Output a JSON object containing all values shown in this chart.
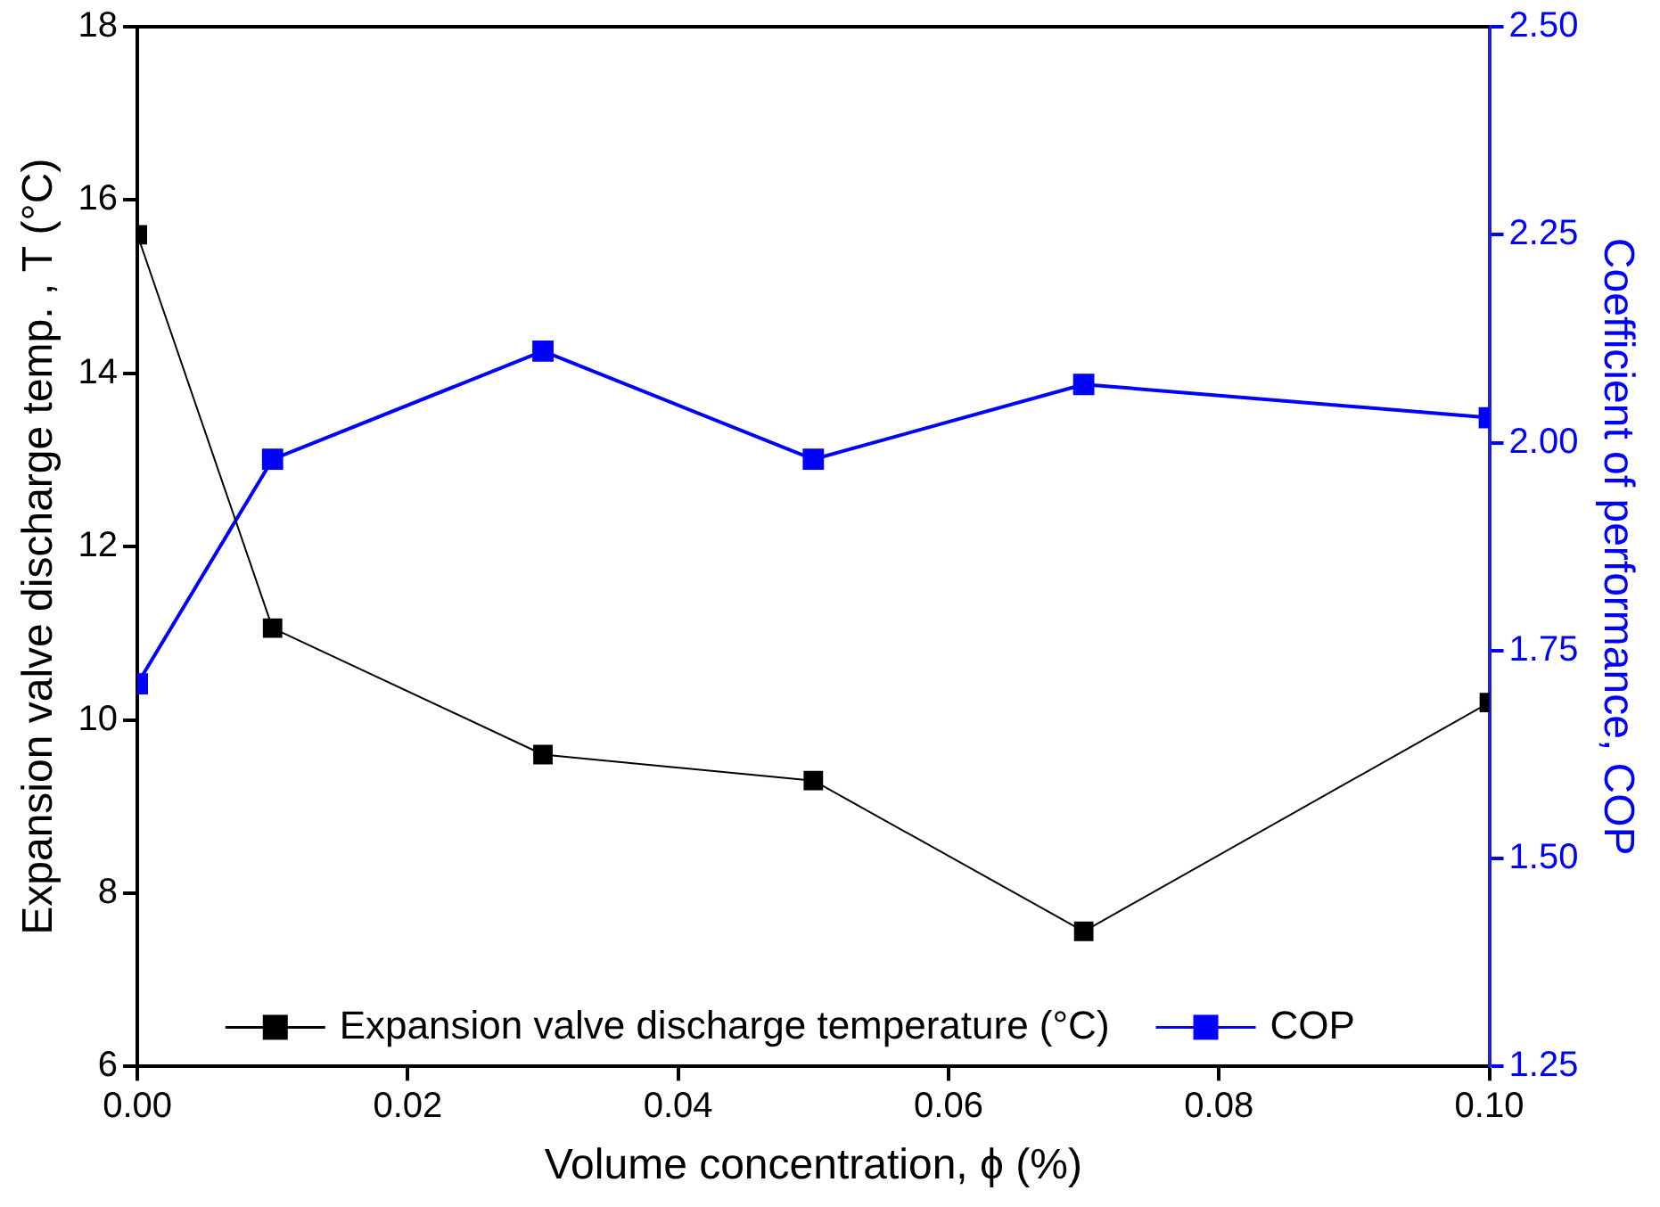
{
  "chart_data": {
    "type": "line",
    "xlabel": "Volume concentration, ϕ (%)",
    "ylabel": "Expansion valve discharge temp. , T (°C)",
    "y2label": "Coefficient of performance, COP",
    "x": [
      0,
      0.01,
      0.03,
      0.05,
      0.07,
      0.1
    ],
    "xlim": [
      0,
      0.1
    ],
    "xticks": [
      {
        "value": 0,
        "label": "0.00"
      },
      {
        "value": 0.02,
        "label": "0.02"
      },
      {
        "value": 0.04,
        "label": "0.04"
      },
      {
        "value": 0.06,
        "label": "0.06"
      },
      {
        "value": 0.08,
        "label": "0.08"
      },
      {
        "value": 0.1,
        "label": "0.10"
      }
    ],
    "ylim": [
      6,
      18
    ],
    "yticks": [
      6,
      8,
      10,
      12,
      14,
      16,
      18
    ],
    "y2lim": [
      1.25,
      2.5
    ],
    "y2ticks": [
      1.25,
      {
        "value": 1.5,
        "label": "1.50"
      },
      1.75,
      {
        "value": 2,
        "label": "2.00"
      },
      2.25,
      {
        "value": 2.5,
        "label": "2.50"
      }
    ],
    "series": [
      {
        "name": "Expansion valve discharge temperature (°C)",
        "color": "#000000",
        "values": [
          15.6,
          11.06,
          9.6,
          9.3,
          7.56,
          10.2
        ]
      },
      {
        "name": "COP",
        "color": "#0000ff",
        "axis": "y2",
        "values": [
          1.71,
          1.98,
          2.11,
          1.98,
          2.07,
          2.03
        ]
      }
    ],
    "marker": "square",
    "line_style": "solid",
    "grid": false,
    "legend": "bottom"
  }
}
